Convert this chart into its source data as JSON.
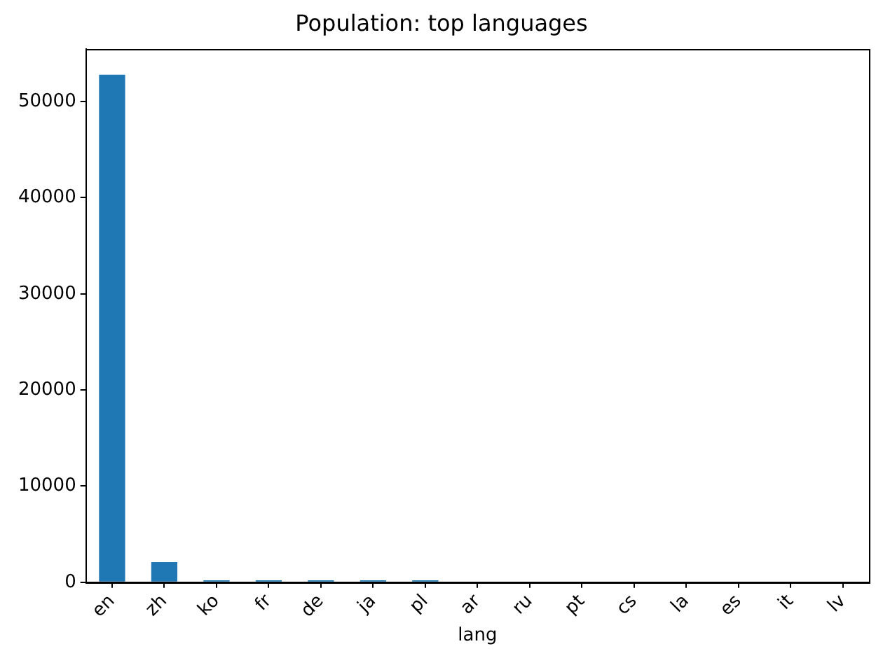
{
  "chart_data": {
    "type": "bar",
    "title": "Population: top languages",
    "xlabel": "lang",
    "categories": [
      "en",
      "zh",
      "ko",
      "fr",
      "de",
      "ja",
      "pl",
      "ar",
      "ru",
      "pt",
      "cs",
      "la",
      "es",
      "it",
      "lv"
    ],
    "values": [
      52800,
      2100,
      200,
      200,
      200,
      200,
      200,
      0,
      0,
      0,
      0,
      0,
      0,
      0,
      0
    ],
    "color": "#1f77b4",
    "ylim": [
      0,
      55440
    ],
    "yticks": [
      0,
      10000,
      20000,
      30000,
      40000,
      50000
    ]
  }
}
